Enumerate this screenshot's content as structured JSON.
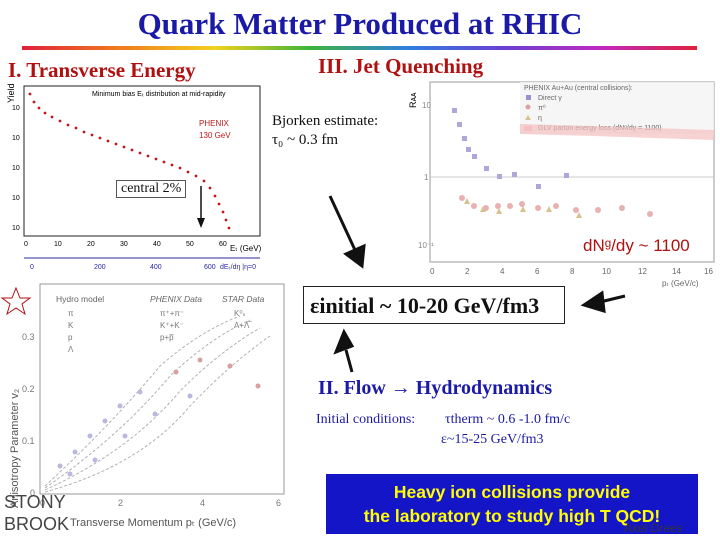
{
  "slide": {
    "title": "Quark Matter Produced at RHIC",
    "sec1": "I. Transverse Energy",
    "sec2": "II. Flow → Hydrodynamics",
    "sec3": "III. Jet Quenching"
  },
  "et_plot": {
    "ylabel": "Yield",
    "plot_title": "Minimum bias Eₜ distribution at mid-rapidity",
    "exp": "PHENIX",
    "energy": "130 GeV",
    "central": "central 2%",
    "x_label": "Eₜ (GeV)",
    "x2_label": "dEₜ/dη |η=0",
    "x_ticks": [
      "0",
      "10",
      "20",
      "30",
      "40",
      "50",
      "60"
    ],
    "x2_ticks": [
      "0",
      "200",
      "400",
      "600"
    ],
    "y_ticks": [
      "10",
      "10",
      "10",
      "10",
      "10"
    ]
  },
  "bjorken": {
    "line1": "Bjorken estimate:",
    "line2": "τ₀ ~ 0.3 fm"
  },
  "raa_plot": {
    "ylabel": "Rᴀᴀ",
    "legend_title": "PHENIX Au+Au (central collisions):",
    "legend": [
      "Direct γ",
      "π⁰",
      "η",
      "GLV parton energy loss (dNᵍ/dy = 1100)"
    ],
    "y_ticks": [
      "10",
      "1",
      "10⁻¹"
    ],
    "x_ticks": [
      "0",
      "2",
      "4",
      "6",
      "8",
      "10",
      "12",
      "14",
      "16"
    ],
    "x_label": "pₜ (GeV/c)"
  },
  "dndy": "dNᵍ/dy ~ 1100",
  "eps_initial": "εinitial ~ 10-20 GeV/fm3",
  "v2_plot": {
    "ylabel": "Anisotropy Parameter v₂",
    "legend_hydro": "Hydro model",
    "legend_phenix": "PHENIX Data",
    "legend_star": "STAR Data",
    "hydro_items": [
      "π",
      "K",
      "p",
      "Λ"
    ],
    "phenix_items": [
      "π⁺+π⁻",
      "K⁺+K⁻",
      "p+p̅"
    ],
    "star_items": [
      "K⁰ₛ",
      "Λ+Λ̅"
    ],
    "y_ticks": [
      "0.3",
      "0.2",
      "0.1",
      "0"
    ],
    "x_ticks": [
      "0",
      "2",
      "4",
      "6"
    ],
    "x_label": "Transverse Momentum pₜ (GeV/c)",
    "logo_top": "STONY",
    "logo_bottom": "BROOK"
  },
  "initial": {
    "label": "Initial conditions:",
    "tau": "τtherm ~ 0.6 -1.0 fm/c",
    "eps": "ε~15-25 GeV/fm3"
  },
  "heavy": {
    "line1": "Heavy ion collisions provide",
    "line2": "the laboratory to study high T QCD!"
  },
  "author": "Axel Drees",
  "colors": {
    "title": "#1a1aa6",
    "section": "#b01010",
    "box": "#1515c8",
    "box_text": "#ffff00"
  }
}
